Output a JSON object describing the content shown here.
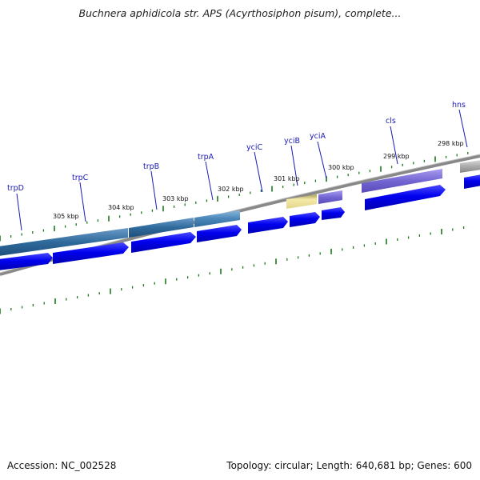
{
  "title": "Buchnera aphidicola str. APS (Acyrthosiphon pisum), complete...",
  "footer": {
    "accession": "Accession: NC_002528",
    "stats": "Topology: circular; Length: 640,681 bp; Genes: 600"
  },
  "genes": [
    {
      "name": "trpD",
      "color": "#3a6f9e"
    },
    {
      "name": "trpC",
      "color": "#3a6f9e"
    },
    {
      "name": "trpB",
      "color": "#3a6f9e"
    },
    {
      "name": "trpA",
      "color": "#4a82b4"
    },
    {
      "name": "yciC",
      "color": null
    },
    {
      "name": "yciB",
      "color": "#e8d890"
    },
    {
      "name": "yciA",
      "color": "#7b6fd0"
    },
    {
      "name": "cls",
      "color": "#6a5ac8"
    },
    {
      "name": "hns",
      "color": "#aaaaaa"
    }
  ],
  "scale_labels": [
    "305 kbp",
    "304 kbp",
    "303 kbp",
    "302 kbp",
    "301 kbp",
    "300 kbp",
    "299 kbp",
    "298 kbp"
  ],
  "colors": {
    "cds_arrow": "#0000dd",
    "backbone": "#888888",
    "tick": "#1a7a1a",
    "label": "#1a1ab8"
  }
}
